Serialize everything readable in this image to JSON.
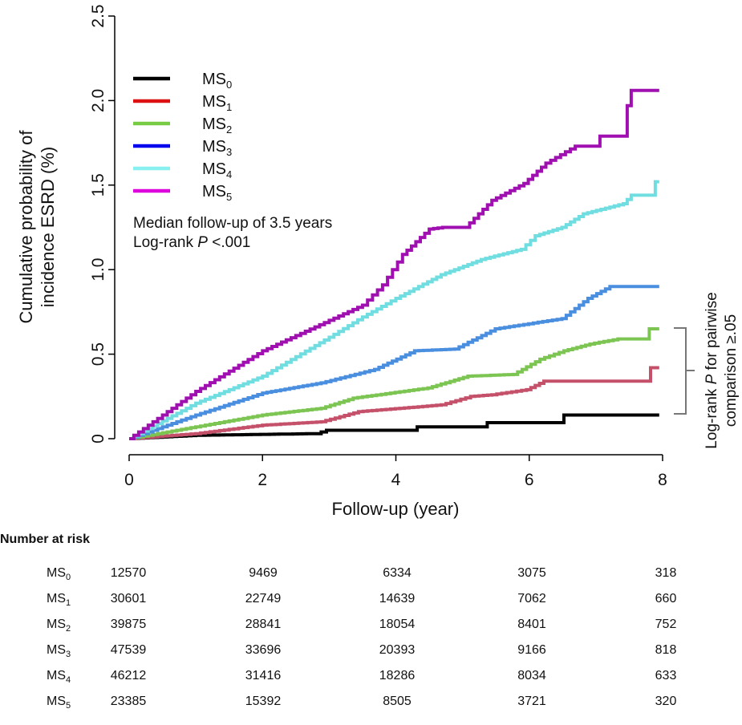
{
  "chart_data": {
    "type": "line",
    "subtype": "kaplan-meier-cumulative-incidence-step",
    "ylabel_lines": [
      "Cumulative probability of",
      "incidence ESRD (%)"
    ],
    "xlabel": "Follow-up (year)",
    "xlim": [
      0,
      8
    ],
    "ylim": [
      0,
      2.5
    ],
    "xticks": [
      0,
      2,
      4,
      6,
      8
    ],
    "xtick_labels": [
      "0",
      "2",
      "4",
      "6",
      "8"
    ],
    "yticks": [
      0,
      0.5,
      1.0,
      1.5,
      2.0,
      2.5
    ],
    "ytick_labels": [
      "0",
      "0.5",
      "1.0",
      "1.5",
      "2.0",
      "2.5"
    ],
    "grid": false,
    "legend_position": "top-left",
    "annotations": {
      "median": "Median follow-up of 3.5 years",
      "logrank_prefix": "Log-rank ",
      "logrank_p": "P",
      "logrank_value": " <.001",
      "bracket_line1_prefix": "Log-rank ",
      "bracket_line1_p": "P",
      "bracket_line1_suffix": " for pairwise",
      "bracket_line2": "comparison ≥.05"
    },
    "series": [
      {
        "name": "MS",
        "sub": "0",
        "legend_color": "#000000",
        "color": "#000000",
        "points": [
          [
            0,
            0
          ],
          [
            1,
            0.02
          ],
          [
            2.8,
            0.03
          ],
          [
            2.96,
            0.05
          ],
          [
            4.32,
            0.05
          ],
          [
            4.32,
            0.07
          ],
          [
            5.37,
            0.07
          ],
          [
            5.37,
            0.095
          ],
          [
            6.52,
            0.095
          ],
          [
            6.52,
            0.14
          ],
          [
            7.95,
            0.14
          ]
        ]
      },
      {
        "name": "MS",
        "sub": "1",
        "legend_color": "#dd1111",
        "color": "#c4506a",
        "points": [
          [
            0,
            0
          ],
          [
            1,
            0.03
          ],
          [
            2,
            0.08
          ],
          [
            2.88,
            0.1
          ],
          [
            3.44,
            0.16
          ],
          [
            4.68,
            0.2
          ],
          [
            5.12,
            0.25
          ],
          [
            5.44,
            0.26
          ],
          [
            5.96,
            0.29
          ],
          [
            6.22,
            0.34
          ],
          [
            7.82,
            0.34
          ],
          [
            7.82,
            0.42
          ],
          [
            7.95,
            0.42
          ]
        ]
      },
      {
        "name": "MS",
        "sub": "2",
        "legend_color": "#77cc44",
        "color": "#7cc552",
        "points": [
          [
            0,
            0
          ],
          [
            1,
            0.07
          ],
          [
            2,
            0.14
          ],
          [
            2.88,
            0.18
          ],
          [
            3.36,
            0.24
          ],
          [
            4.48,
            0.3
          ],
          [
            5.08,
            0.37
          ],
          [
            5.76,
            0.38
          ],
          [
            6.16,
            0.47
          ],
          [
            6.52,
            0.52
          ],
          [
            6.91,
            0.56
          ],
          [
            7.33,
            0.59
          ],
          [
            7.8,
            0.59
          ],
          [
            7.8,
            0.65
          ],
          [
            7.95,
            0.65
          ]
        ]
      },
      {
        "name": "MS",
        "sub": "3",
        "legend_color": "#0000ee",
        "color": "#4a8ee0",
        "points": [
          [
            0,
            0
          ],
          [
            1,
            0.14
          ],
          [
            2,
            0.27
          ],
          [
            2.88,
            0.33
          ],
          [
            3.68,
            0.41
          ],
          [
            4.28,
            0.52
          ],
          [
            4.88,
            0.53
          ],
          [
            5.49,
            0.65
          ],
          [
            6.49,
            0.71
          ],
          [
            6.88,
            0.83
          ],
          [
            7.21,
            0.9
          ],
          [
            7.95,
            0.9
          ]
        ]
      },
      {
        "name": "MS",
        "sub": "4",
        "legend_color": "#88f0f0",
        "color": "#70dde0",
        "points": [
          [
            0,
            0
          ],
          [
            1,
            0.21
          ],
          [
            2,
            0.37
          ],
          [
            3,
            0.6
          ],
          [
            3.5,
            0.72
          ],
          [
            4,
            0.83
          ],
          [
            4.68,
            0.97
          ],
          [
            5.28,
            1.06
          ],
          [
            5.88,
            1.12
          ],
          [
            6.09,
            1.2
          ],
          [
            6.49,
            1.25
          ],
          [
            6.81,
            1.33
          ],
          [
            7.41,
            1.39
          ],
          [
            7.53,
            1.44
          ],
          [
            7.89,
            1.44
          ],
          [
            7.89,
            1.52
          ],
          [
            7.95,
            1.52
          ]
        ]
      },
      {
        "name": "MS",
        "sub": "5",
        "legend_color": "#dd00dd",
        "color": "#a010b0",
        "points": [
          [
            0,
            0
          ],
          [
            1,
            0.28
          ],
          [
            2,
            0.52
          ],
          [
            3,
            0.7
          ],
          [
            3.5,
            0.79
          ],
          [
            3.8,
            0.91
          ],
          [
            4.1,
            1.09
          ],
          [
            4.5,
            1.24
          ],
          [
            4.7,
            1.25
          ],
          [
            5.04,
            1.25
          ],
          [
            5.44,
            1.41
          ],
          [
            5.92,
            1.51
          ],
          [
            6.25,
            1.63
          ],
          [
            6.69,
            1.73
          ],
          [
            7.06,
            1.73
          ],
          [
            7.06,
            1.79
          ],
          [
            7.47,
            1.79
          ],
          [
            7.47,
            1.97
          ],
          [
            7.53,
            1.97
          ],
          [
            7.53,
            2.06
          ],
          [
            7.95,
            2.06
          ]
        ]
      }
    ]
  },
  "risk_table": {
    "title": "Number at risk",
    "rows": [
      {
        "name": "MS",
        "sub": "0",
        "values": [
          "12570",
          "9469",
          "6334",
          "3075",
          "318"
        ]
      },
      {
        "name": "MS",
        "sub": "1",
        "values": [
          "30601",
          "22749",
          "14639",
          "7062",
          "660"
        ]
      },
      {
        "name": "MS",
        "sub": "2",
        "values": [
          "39875",
          "28841",
          "18054",
          "8401",
          "752"
        ]
      },
      {
        "name": "MS",
        "sub": "3",
        "values": [
          "47539",
          "33696",
          "20393",
          "9166",
          "818"
        ]
      },
      {
        "name": "MS",
        "sub": "4",
        "values": [
          "46212",
          "31416",
          "18286",
          "8034",
          "633"
        ]
      },
      {
        "name": "MS",
        "sub": "5",
        "values": [
          "23385",
          "15392",
          "8505",
          "3721",
          "320"
        ]
      }
    ]
  }
}
